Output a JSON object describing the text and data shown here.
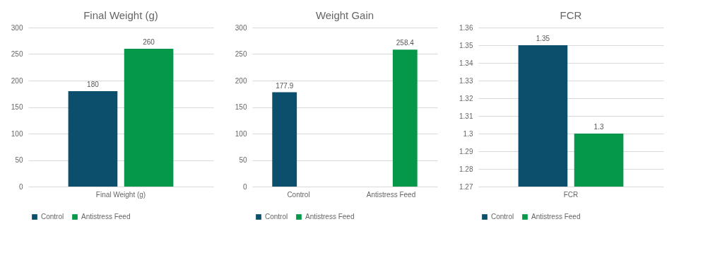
{
  "chart_data": [
    {
      "type": "bar",
      "title": "Final Weight (g)",
      "categories": [
        "Final Weight (g)"
      ],
      "series": [
        {
          "name": "Control",
          "color": "#0b4f6c",
          "values": [
            180
          ]
        },
        {
          "name": "Antistress Feed",
          "color": "#05984a",
          "values": [
            260
          ]
        }
      ],
      "ylim": [
        0,
        300
      ],
      "yticks": [
        0,
        50,
        100,
        150,
        200,
        250,
        300
      ],
      "grid": "y",
      "legend": "bottom",
      "data_labels": true
    },
    {
      "type": "bar",
      "title": "Weight Gain",
      "categories": [
        "Control",
        "Antistress Feed"
      ],
      "series": [
        {
          "name": "Control",
          "color": "#0b4f6c",
          "values": [
            177.9,
            null
          ]
        },
        {
          "name": "Antistress Feed",
          "color": "#05984a",
          "values": [
            null,
            258.4
          ]
        }
      ],
      "ylim": [
        0,
        300
      ],
      "yticks": [
        0,
        50,
        100,
        150,
        200,
        250,
        300
      ],
      "grid": "y",
      "legend": "bottom",
      "data_labels": true
    },
    {
      "type": "bar",
      "title": "FCR",
      "categories": [
        "FCR"
      ],
      "series": [
        {
          "name": "Control",
          "color": "#0b4f6c",
          "values": [
            1.35
          ]
        },
        {
          "name": "Antistress Feed",
          "color": "#05984a",
          "values": [
            1.3
          ]
        }
      ],
      "ylim": [
        1.27,
        1.36
      ],
      "yticks": [
        1.27,
        1.28,
        1.29,
        1.3,
        1.31,
        1.32,
        1.33,
        1.34,
        1.35,
        1.36
      ],
      "grid": "y",
      "legend": "bottom",
      "data_labels": true
    }
  ]
}
